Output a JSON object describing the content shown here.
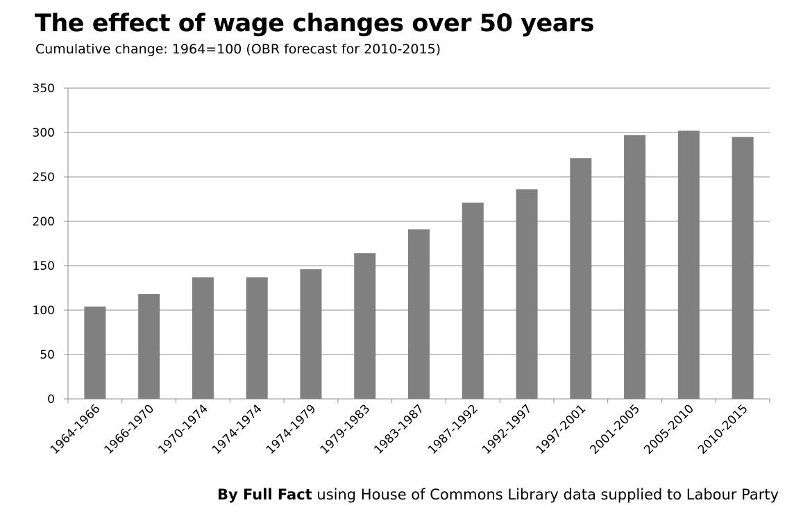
{
  "chart_data": {
    "type": "bar",
    "title": "The effect of wage changes over 50 years",
    "subtitle": "Cumulative change: 1964=100 (OBR forecast for 2010-2015)",
    "categories": [
      "1964-1966",
      "1966-1970",
      "1970-1974",
      "1974-1974",
      "1974-1979",
      "1979-1983",
      "1983-1987",
      "1987-1992",
      "1992-1997",
      "1997-2001",
      "2001-2005",
      "2005-2010",
      "2010-2015"
    ],
    "values": [
      104,
      118,
      137,
      137,
      146,
      164,
      191,
      221,
      236,
      271,
      297,
      302,
      295
    ],
    "ylim": [
      0,
      350
    ],
    "yticks": [
      0,
      50,
      100,
      150,
      200,
      250,
      300,
      350
    ],
    "xlabel": "",
    "ylabel": "",
    "grid": true,
    "bar_color": "#808080",
    "grid_color": "#8c8c8c"
  },
  "credit": {
    "by": "By Full Fact",
    "rest": "using House of Commons Library data supplied to Labour Party"
  }
}
